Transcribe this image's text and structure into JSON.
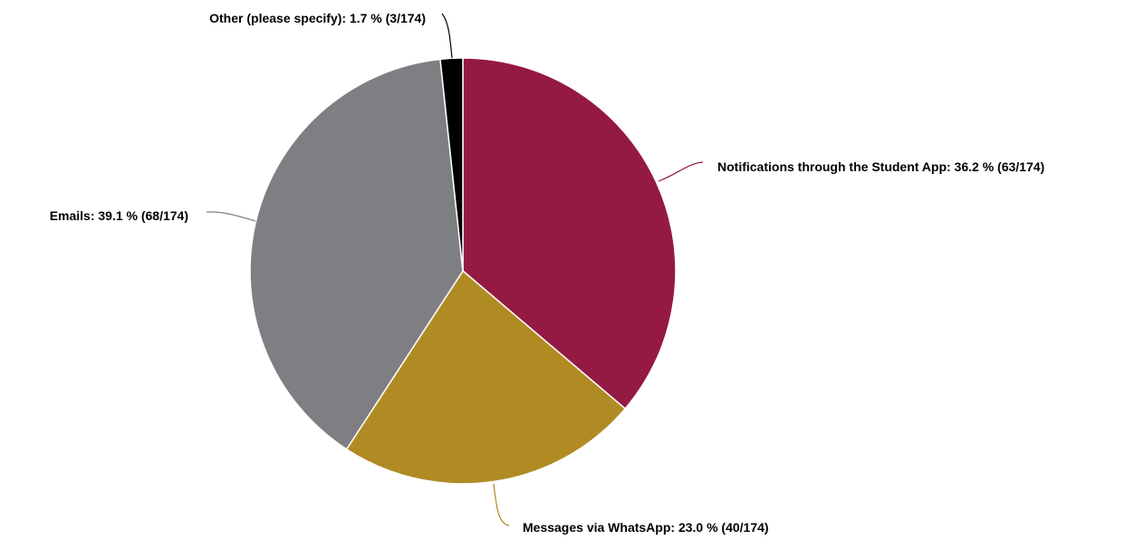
{
  "chart_data": {
    "type": "pie",
    "title": "",
    "slices": [
      {
        "label": "Notifications through the Student App",
        "percent": 36.2,
        "count": 63,
        "total": 174,
        "color": "#941943",
        "text": "Notifications through the Student App: 36.2 % (63/174)"
      },
      {
        "label": "Messages via WhatsApp",
        "percent": 23.0,
        "count": 40,
        "total": 174,
        "color": "#B08B23",
        "text": "Messages via WhatsApp: 23.0 % (40/174)"
      },
      {
        "label": "Emails",
        "percent": 39.1,
        "count": 68,
        "total": 174,
        "color": "#7F7E83",
        "text": "Emails: 39.1 % (68/174)"
      },
      {
        "label": "Other (please specify)",
        "percent": 1.7,
        "count": 3,
        "total": 174,
        "color": "#000000",
        "text": "Other (please specify): 1.7 % (3/174)"
      }
    ],
    "start_angle": "12 o'clock",
    "direction": "clockwise",
    "legend": "none"
  }
}
